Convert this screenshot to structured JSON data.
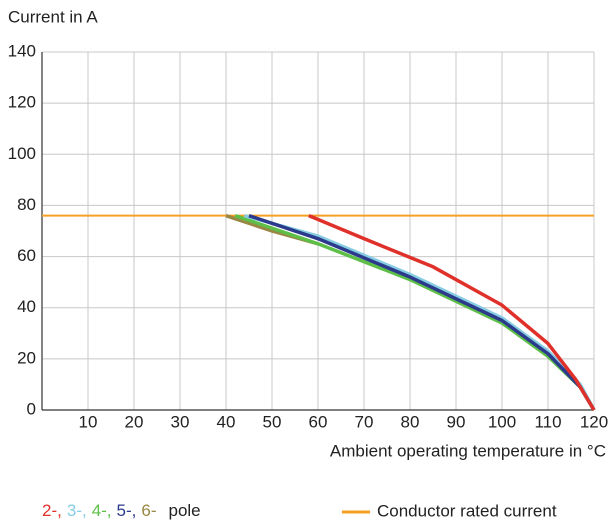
{
  "chart_data": {
    "type": "line",
    "y_label": "Current in A",
    "x_label": "Ambient operating temperature in °C",
    "xlim": [
      0,
      120
    ],
    "ylim": [
      0,
      140
    ],
    "xticks": [
      10,
      20,
      30,
      40,
      50,
      60,
      70,
      80,
      90,
      100,
      110,
      120
    ],
    "yticks": [
      0,
      20,
      40,
      60,
      80,
      100,
      120,
      140
    ],
    "grid": true,
    "legend_suffix": "pole",
    "series": [
      {
        "name": "2-,",
        "color": "#e0302a",
        "x": [
          58,
          70,
          85,
          100,
          110,
          116,
          120
        ],
        "values": [
          76,
          67,
          56,
          41,
          26,
          12,
          0
        ]
      },
      {
        "name": "3-,",
        "color": "#86cde3",
        "x": [
          44,
          60,
          80,
          100,
          110,
          117,
          120
        ],
        "values": [
          76,
          68,
          53,
          36,
          23,
          10,
          0
        ]
      },
      {
        "name": "4-,",
        "color": "#5dbf48",
        "x": [
          42,
          60,
          80,
          100,
          110,
          117,
          120
        ],
        "values": [
          76,
          65,
          51,
          34,
          21,
          9,
          0
        ]
      },
      {
        "name": "5-,",
        "color": "#2c3a8c",
        "x": [
          45,
          60,
          80,
          100,
          110,
          117,
          120
        ],
        "values": [
          76,
          67,
          52,
          35,
          22,
          9,
          0
        ]
      },
      {
        "name": "6-",
        "color": "#9a8744",
        "x": [
          40,
          50,
          60
        ],
        "values": [
          76,
          70,
          65
        ]
      },
      {
        "name": "Conductor rated current",
        "color": "#f5a020",
        "x": [
          0,
          120
        ],
        "values": [
          76,
          76
        ]
      }
    ]
  }
}
